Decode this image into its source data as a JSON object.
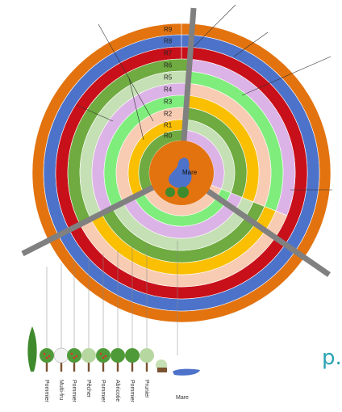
{
  "rings": [
    "R9",
    "R8",
    "R7",
    "R6",
    "R5",
    "R4",
    "R3",
    "R2",
    "R1",
    "R0"
  ],
  "center_label": "Mare",
  "legend": [
    "Pommier",
    "Multi-fru",
    "Pommier",
    "Pêcher",
    "Pommier",
    "Abricotie",
    "Pommier",
    "Prunier",
    "Mare"
  ],
  "page_letter": "p.",
  "colors": {
    "orange": "#e3730f",
    "blue": "#4d72c9",
    "red": "#c8101a",
    "lilac": "#dcb3e6",
    "green": "#7fed7c",
    "peach": "#f8ccb2",
    "yellow": "#f9bf00",
    "dark_green": "#6fab40",
    "pale_green": "#c5e0b4",
    "divider": "#808080",
    "page_letter": "#29a3b3"
  }
}
